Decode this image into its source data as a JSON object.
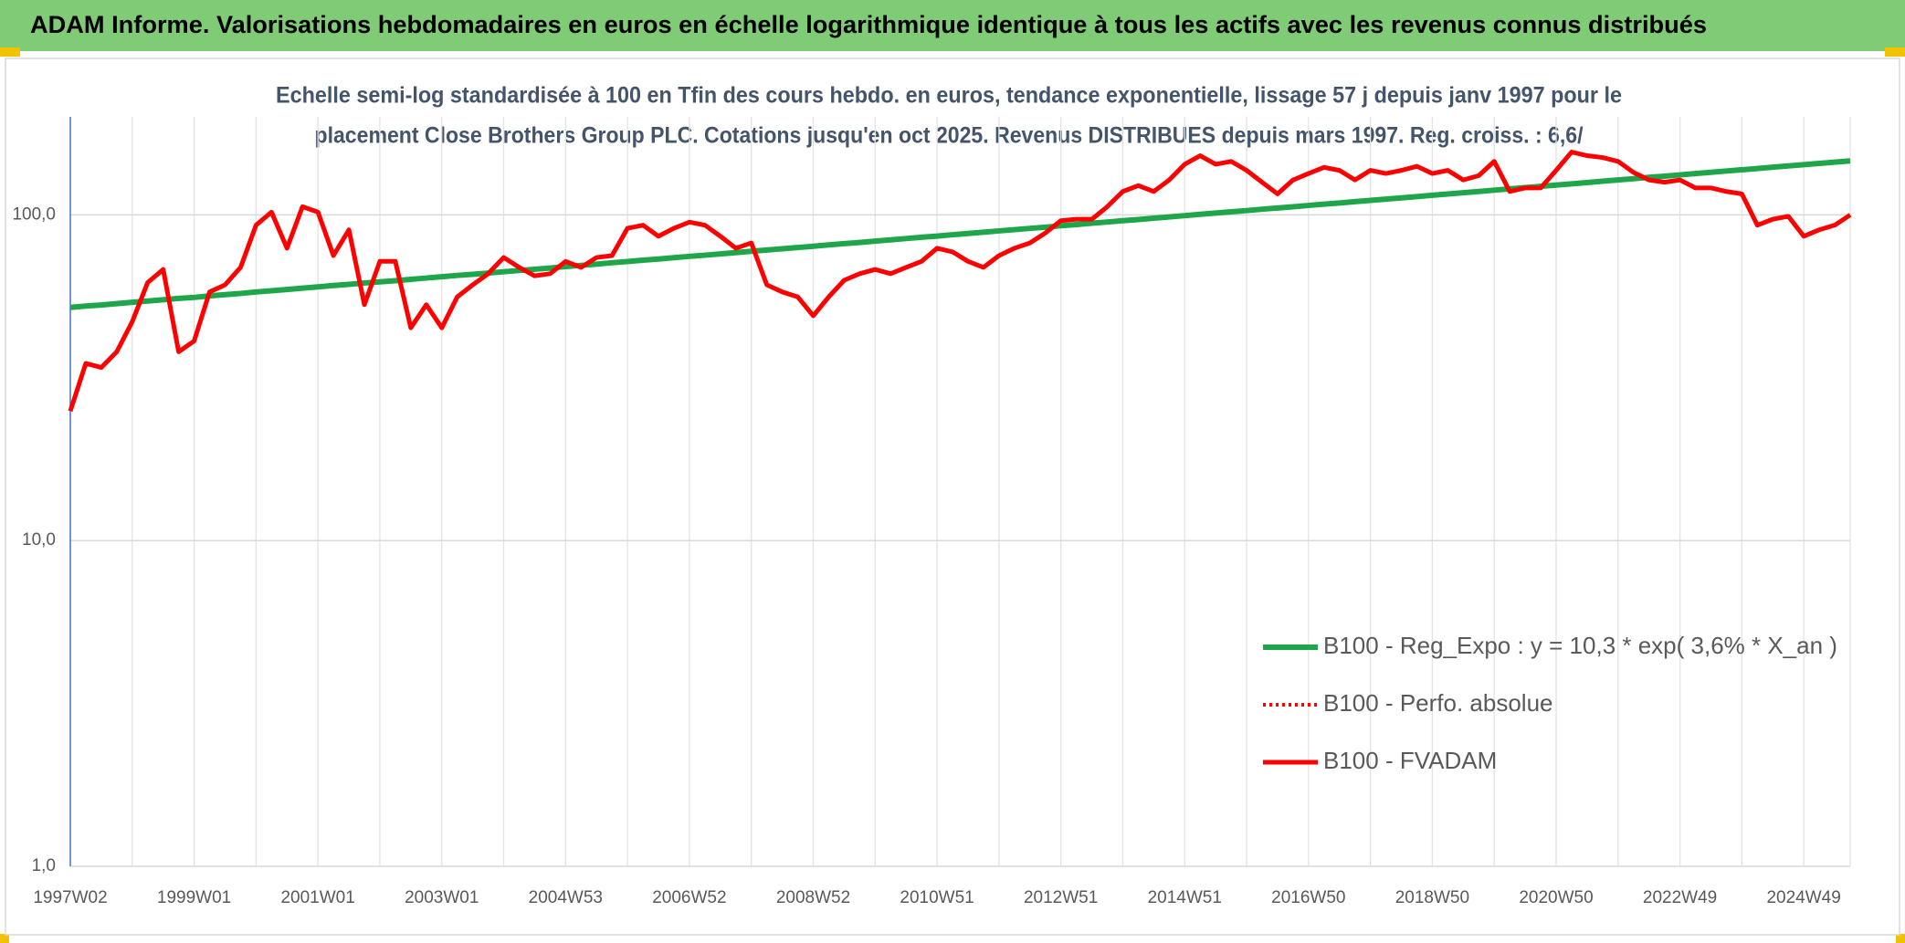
{
  "chart_data": {
    "type": "line",
    "title": "ADAM Informe. Valorisations hebdomadaires en euros en échelle logarithmique identique à tous les actifs avec les revenus connus distribués",
    "subtitle": [
      "Echelle semi-log standardisée à 100 en Tfin des cours hebdo. en euros, tendance exponentielle, lissage 57 j depuis janv 1997 pour le",
      "placement Close Brothers Group PLC. Cotations jusqu'en oct 2025. Revenus DISTRIBUES depuis mars 1997. Reg. croiss. : 6,6/"
    ],
    "log_scale": true,
    "grid": true,
    "legend_position": "lower-right",
    "ylim": [
      1,
      200
    ],
    "yticks": [
      {
        "value": 1,
        "label": "1,0"
      },
      {
        "value": 10,
        "label": "10,0"
      },
      {
        "value": 100,
        "label": "100,0"
      }
    ],
    "categories": [
      "1997W02",
      null,
      null,
      null,
      null,
      null,
      null,
      null,
      "1999W01",
      null,
      null,
      null,
      null,
      null,
      null,
      null,
      "2001W01",
      null,
      null,
      null,
      null,
      null,
      null,
      null,
      "2003W01",
      null,
      null,
      null,
      null,
      null,
      null,
      null,
      "2004W53",
      null,
      null,
      null,
      null,
      null,
      null,
      null,
      "2006W52",
      null,
      null,
      null,
      null,
      null,
      null,
      null,
      "2008W52",
      null,
      null,
      null,
      null,
      null,
      null,
      null,
      "2010W51",
      null,
      null,
      null,
      null,
      null,
      null,
      null,
      "2012W51",
      null,
      null,
      null,
      null,
      null,
      null,
      null,
      "2014W51",
      null,
      null,
      null,
      null,
      null,
      null,
      null,
      "2016W50",
      null,
      null,
      null,
      null,
      null,
      null,
      null,
      "2018W50",
      null,
      null,
      null,
      null,
      null,
      null,
      null,
      "2020W50",
      null,
      null,
      null,
      null,
      null,
      null,
      null,
      "2022W49",
      null,
      null,
      null,
      null,
      null,
      null,
      null,
      "2024W49",
      null,
      null,
      null
    ],
    "series": [
      {
        "name": "B100 - Reg_Expo : y = 10,3 * exp( 3,6% *  X_an )",
        "color": "#1fa64a",
        "style": "solid",
        "values": [
          52.0,
          52.5,
          52.9,
          53.4,
          53.9,
          54.4,
          54.9,
          55.4,
          55.8,
          56.4,
          56.9,
          57.4,
          58.0,
          58.5,
          59.0,
          59.6,
          60.1,
          60.7,
          61.2,
          61.8,
          62.3,
          62.8,
          63.4,
          64.0,
          64.6,
          65.2,
          65.7,
          66.3,
          66.9,
          67.5,
          68.1,
          68.7,
          69.4,
          70.0,
          70.6,
          71.3,
          71.9,
          72.6,
          73.2,
          73.9,
          74.6,
          75.2,
          75.9,
          76.6,
          77.3,
          78.0,
          78.7,
          79.4,
          80.1,
          80.9,
          81.6,
          82.3,
          83.1,
          83.8,
          84.6,
          85.4,
          86.1,
          86.9,
          87.7,
          88.5,
          89.3,
          90.1,
          90.9,
          91.7,
          92.6,
          93.4,
          94.3,
          95.1,
          96.0,
          96.8,
          97.7,
          98.6,
          99.5,
          100.4,
          101.3,
          102.2,
          103.1,
          104.1,
          105.0,
          105.9,
          106.9,
          107.9,
          108.8,
          109.8,
          110.8,
          111.8,
          112.8,
          113.8,
          114.9,
          115.9,
          117.0,
          118.0,
          119.1,
          120.2,
          121.3,
          122.4,
          123.5,
          124.6,
          125.7,
          126.9,
          128.0,
          129.2,
          130.4,
          131.5,
          132.7,
          133.9,
          135.1,
          136.4,
          137.6,
          138.8,
          140.1,
          141.4,
          142.6,
          143.9,
          145.2,
          146.5
        ]
      },
      {
        "name": "B100 - Perfo. absolue",
        "color": "#ff0000",
        "style": "dotted",
        "values": [
          25,
          35,
          34,
          38,
          47,
          62,
          68,
          38,
          41,
          58,
          61,
          69,
          93,
          102,
          79,
          106,
          102,
          75,
          90,
          53,
          72,
          72,
          45,
          53,
          45,
          56,
          61,
          66,
          74,
          69,
          65,
          66,
          72,
          69,
          74,
          75,
          91,
          93,
          86,
          91,
          95,
          93,
          86,
          79,
          82,
          61,
          58,
          56,
          49,
          56,
          63,
          66,
          68,
          66,
          69,
          72,
          79,
          77,
          72,
          69,
          75,
          79,
          82,
          88,
          96,
          97,
          97,
          106,
          118,
          123,
          118,
          128,
          143,
          152,
          143,
          146,
          137,
          126,
          116,
          128,
          134,
          140,
          137,
          128,
          137,
          134,
          137,
          141,
          134,
          137,
          128,
          132,
          146,
          118,
          121,
          121,
          137,
          156,
          152,
          150,
          146,
          135,
          128,
          126,
          128,
          121,
          121,
          118,
          116,
          93,
          97,
          99,
          86,
          90,
          93,
          100
        ]
      },
      {
        "name": "B100 - FVADAM",
        "color": "#ff0000",
        "style": "solid",
        "values": [
          25,
          35,
          34,
          38,
          47,
          62,
          68,
          38,
          41,
          58,
          61,
          69,
          93,
          102,
          79,
          106,
          102,
          75,
          90,
          53,
          72,
          72,
          45,
          53,
          45,
          56,
          61,
          66,
          74,
          69,
          65,
          66,
          72,
          69,
          74,
          75,
          91,
          93,
          86,
          91,
          95,
          93,
          86,
          79,
          82,
          61,
          58,
          56,
          49,
          56,
          63,
          66,
          68,
          66,
          69,
          72,
          79,
          77,
          72,
          69,
          75,
          79,
          82,
          88,
          96,
          97,
          97,
          106,
          118,
          123,
          118,
          128,
          143,
          152,
          143,
          146,
          137,
          126,
          116,
          128,
          134,
          140,
          137,
          128,
          137,
          134,
          137,
          141,
          134,
          137,
          128,
          132,
          146,
          118,
          121,
          121,
          137,
          156,
          152,
          150,
          146,
          135,
          128,
          126,
          128,
          121,
          121,
          118,
          116,
          93,
          97,
          99,
          86,
          90,
          93,
          100
        ]
      }
    ]
  }
}
